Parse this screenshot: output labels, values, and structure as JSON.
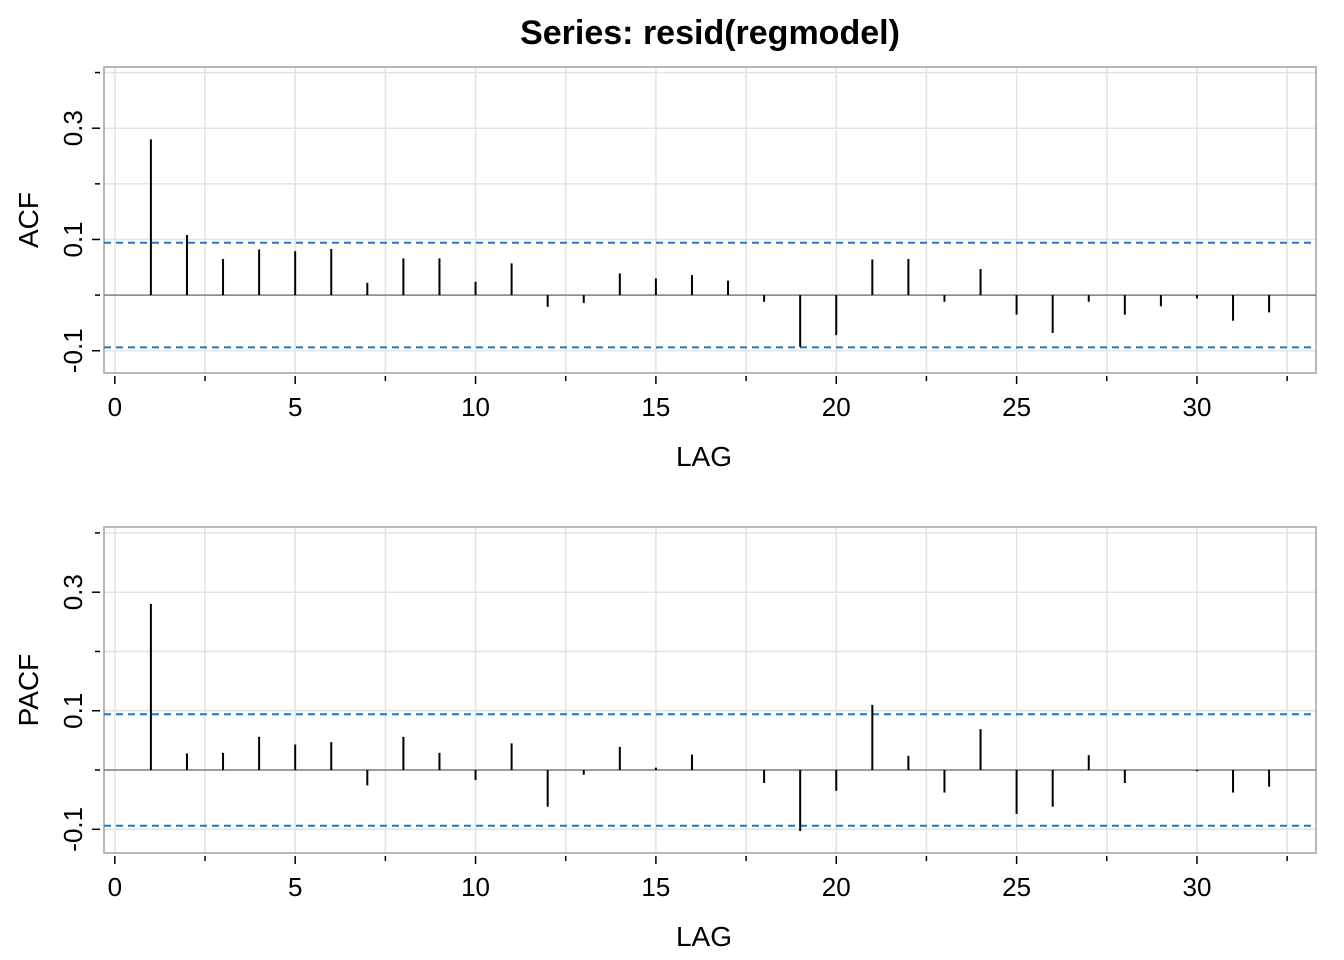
{
  "title": "Series:  resid(regmodel)",
  "colors": {
    "panel_border": "#a0a0a0",
    "grid": "#e3e3e3",
    "bar": "#000000",
    "zero_line": "#808080",
    "ci_line": "#1f78c4"
  },
  "chart_data": [
    {
      "type": "bar",
      "ylabel": "ACF",
      "xlabel": "LAG",
      "xlim": [
        -0.3,
        33.3
      ],
      "ylim": [
        -0.14,
        0.41
      ],
      "xticks": [
        0,
        5,
        10,
        15,
        20,
        25,
        30
      ],
      "xtick_labels": [
        "0",
        "5",
        "10",
        "15",
        "20",
        "25",
        "30"
      ],
      "yticks": [
        -0.1,
        0.1,
        0.3
      ],
      "ytick_labels": [
        "-0.1",
        "0.1",
        "0.3"
      ],
      "ci": [
        0.094,
        -0.094
      ],
      "grid": true,
      "lags": [
        1,
        2,
        3,
        4,
        5,
        6,
        7,
        8,
        9,
        10,
        11,
        12,
        13,
        14,
        15,
        16,
        17,
        18,
        19,
        20,
        21,
        22,
        23,
        24,
        25,
        26,
        27,
        28,
        29,
        30,
        31,
        32
      ],
      "values": [
        0.28,
        0.108,
        0.065,
        0.082,
        0.079,
        0.083,
        0.022,
        0.066,
        0.066,
        0.024,
        0.057,
        -0.021,
        -0.014,
        0.039,
        0.03,
        0.036,
        0.026,
        -0.012,
        -0.093,
        -0.072,
        0.064,
        0.065,
        -0.012,
        0.047,
        -0.035,
        -0.068,
        -0.012,
        -0.035,
        -0.02,
        -0.006,
        -0.046,
        -0.031
      ]
    },
    {
      "type": "bar",
      "ylabel": "PACF",
      "xlabel": "LAG",
      "xlim": [
        -0.3,
        33.3
      ],
      "ylim": [
        -0.14,
        0.41
      ],
      "xticks": [
        0,
        5,
        10,
        15,
        20,
        25,
        30
      ],
      "xtick_labels": [
        "0",
        "5",
        "10",
        "15",
        "20",
        "25",
        "30"
      ],
      "yticks": [
        -0.1,
        0.1,
        0.3
      ],
      "ytick_labels": [
        "-0.1",
        "0.1",
        "0.3"
      ],
      "ci": [
        0.094,
        -0.094
      ],
      "grid": true,
      "lags": [
        1,
        2,
        3,
        4,
        5,
        6,
        7,
        8,
        9,
        10,
        11,
        12,
        13,
        14,
        15,
        16,
        17,
        18,
        19,
        20,
        21,
        22,
        23,
        24,
        25,
        26,
        27,
        28,
        29,
        30,
        31,
        32
      ],
      "values": [
        0.28,
        0.028,
        0.029,
        0.056,
        0.043,
        0.047,
        -0.026,
        0.056,
        0.029,
        -0.017,
        0.045,
        -0.062,
        -0.008,
        0.039,
        0.004,
        0.026,
        0.0,
        -0.022,
        -0.103,
        -0.035,
        0.11,
        0.024,
        -0.038,
        0.069,
        -0.074,
        -0.062,
        0.025,
        -0.022,
        0.0,
        -0.002,
        -0.038,
        -0.028
      ]
    }
  ]
}
